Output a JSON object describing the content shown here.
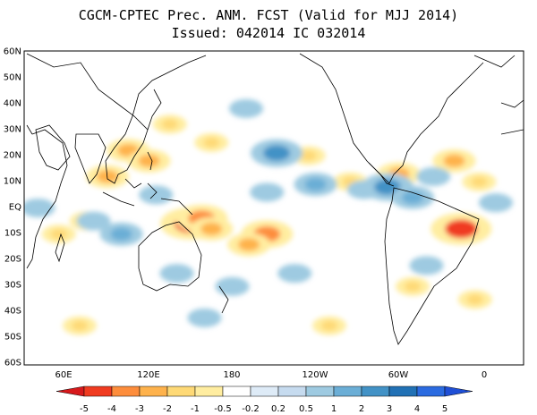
{
  "title": {
    "line1": "CGCM-CPTEC Prec. ANM. FCST  (Valid for MJJ 2014)",
    "line2": "Issued:  042014 IC 032014"
  },
  "map": {
    "latitude_labels": [
      "60N",
      "50N",
      "40N",
      "30N",
      "20N",
      "10N",
      "EQ",
      "10S",
      "20S",
      "30S",
      "40S",
      "50S",
      "60S"
    ],
    "longitude_labels": [
      "60E",
      "120E",
      "180",
      "120W",
      "60W",
      "0"
    ],
    "extent": {
      "lon_min": 20,
      "lon_max": 380,
      "lat_min": -60,
      "lat_max": 60
    }
  },
  "colorbar": {
    "labels": [
      "-5",
      "-4",
      "-3",
      "-2",
      "-1",
      "-0.5",
      "-0.2",
      "0.2",
      "0.5",
      "1",
      "2",
      "3",
      "4",
      "5"
    ],
    "colors": [
      "#d7191c",
      "#f03b20",
      "#fd8d3c",
      "#feb24c",
      "#fed976",
      "#ffeda0",
      "#ffffff",
      "#deebf7",
      "#c6dbef",
      "#9ecae1",
      "#6baed6",
      "#4292c6",
      "#2171b5",
      "#2b6be0",
      "#1f4fd6"
    ]
  },
  "anomaly_regions": [
    {
      "name": "south-america-east-dry",
      "lon": 335,
      "lat": -8,
      "value": -4
    },
    {
      "name": "north-atlantic-dry",
      "lon": 330,
      "lat": 18,
      "value": -2
    },
    {
      "name": "indonesia-dry-a",
      "lon": 140,
      "lat": -6,
      "value": -4
    },
    {
      "name": "indonesia-dry-b",
      "lon": 148,
      "lat": -4,
      "value": -3
    },
    {
      "name": "indonesia-dry-c",
      "lon": 155,
      "lat": -8,
      "value": -2
    },
    {
      "name": "central-pacific-dry",
      "lon": 195,
      "lat": -10,
      "value": -3
    },
    {
      "name": "south-pacific-dry",
      "lon": 182,
      "lat": -14,
      "value": -2
    },
    {
      "name": "india-dry",
      "lon": 80,
      "lat": 12,
      "value": -2
    },
    {
      "name": "bay-of-bengal-dry",
      "lon": 95,
      "lat": 22,
      "value": -2
    },
    {
      "name": "south-asia-dry",
      "lon": 110,
      "lat": 18,
      "value": -2
    },
    {
      "name": "indian-ocean-dry",
      "lon": 65,
      "lat": -5,
      "value": -1
    },
    {
      "name": "western-indian-dry",
      "lon": 45,
      "lat": -10,
      "value": -1
    },
    {
      "name": "east-asia-dry",
      "lon": 125,
      "lat": 32,
      "value": -1
    },
    {
      "name": "nw-pacific-dry",
      "lon": 155,
      "lat": 25,
      "value": -1
    },
    {
      "name": "ne-pacific-dry",
      "lon": 225,
      "lat": 20,
      "value": -1
    },
    {
      "name": "eastern-pacific-dry",
      "lon": 255,
      "lat": 10,
      "value": -1
    },
    {
      "name": "caribbean-dry",
      "lon": 290,
      "lat": 13,
      "value": -2
    },
    {
      "name": "tropical-atlantic-dry",
      "lon": 348,
      "lat": 10,
      "value": -1
    },
    {
      "name": "south-atlantic-dry",
      "lon": 345,
      "lat": -35,
      "value": -1
    },
    {
      "name": "argentina-dry",
      "lon": 300,
      "lat": -30,
      "value": -1
    },
    {
      "name": "southern-ocean-dry",
      "lon": 60,
      "lat": -45,
      "value": -1
    },
    {
      "name": "far-south-pacific-dry",
      "lon": 240,
      "lat": -45,
      "value": -1
    },
    {
      "name": "itcz-pacific-wet",
      "lon": 230,
      "lat": 9,
      "value": 2
    },
    {
      "name": "itcz-pacific-wet-b",
      "lon": 195,
      "lat": 6,
      "value": 1
    },
    {
      "name": "itcz-pacific-wet-c",
      "lon": 265,
      "lat": 7,
      "value": 1
    },
    {
      "name": "hawaii-wet",
      "lon": 202,
      "lat": 21,
      "value": 3
    },
    {
      "name": "panama-wet",
      "lon": 282,
      "lat": 8,
      "value": 3
    },
    {
      "name": "guiana-wet",
      "lon": 300,
      "lat": 4,
      "value": 2
    },
    {
      "name": "north-atlantic-wet",
      "lon": 315,
      "lat": 12,
      "value": 1
    },
    {
      "name": "indian-ocean-wet",
      "lon": 70,
      "lat": -5,
      "value": 1
    },
    {
      "name": "east-indian-wet",
      "lon": 90,
      "lat": -10,
      "value": 2
    },
    {
      "name": "maritime-wet",
      "lon": 115,
      "lat": 5,
      "value": 1
    },
    {
      "name": "australia-wet",
      "lon": 130,
      "lat": -25,
      "value": 1
    },
    {
      "name": "south-pacific-wet",
      "lon": 215,
      "lat": -25,
      "value": 1
    },
    {
      "name": "south-pacific-wet-b",
      "lon": 170,
      "lat": -30,
      "value": 1
    },
    {
      "name": "south-america-south-wet",
      "lon": 310,
      "lat": -22,
      "value": 1
    },
    {
      "name": "east-africa-wet",
      "lon": 30,
      "lat": 0,
      "value": 1
    },
    {
      "name": "atlantic-equatorial-wet",
      "lon": 360,
      "lat": 2,
      "value": 1
    },
    {
      "name": "southern-ocean-wet",
      "lon": 150,
      "lat": -42,
      "value": 1
    },
    {
      "name": "north-pacific-wet",
      "lon": 180,
      "lat": 38,
      "value": 1
    }
  ]
}
